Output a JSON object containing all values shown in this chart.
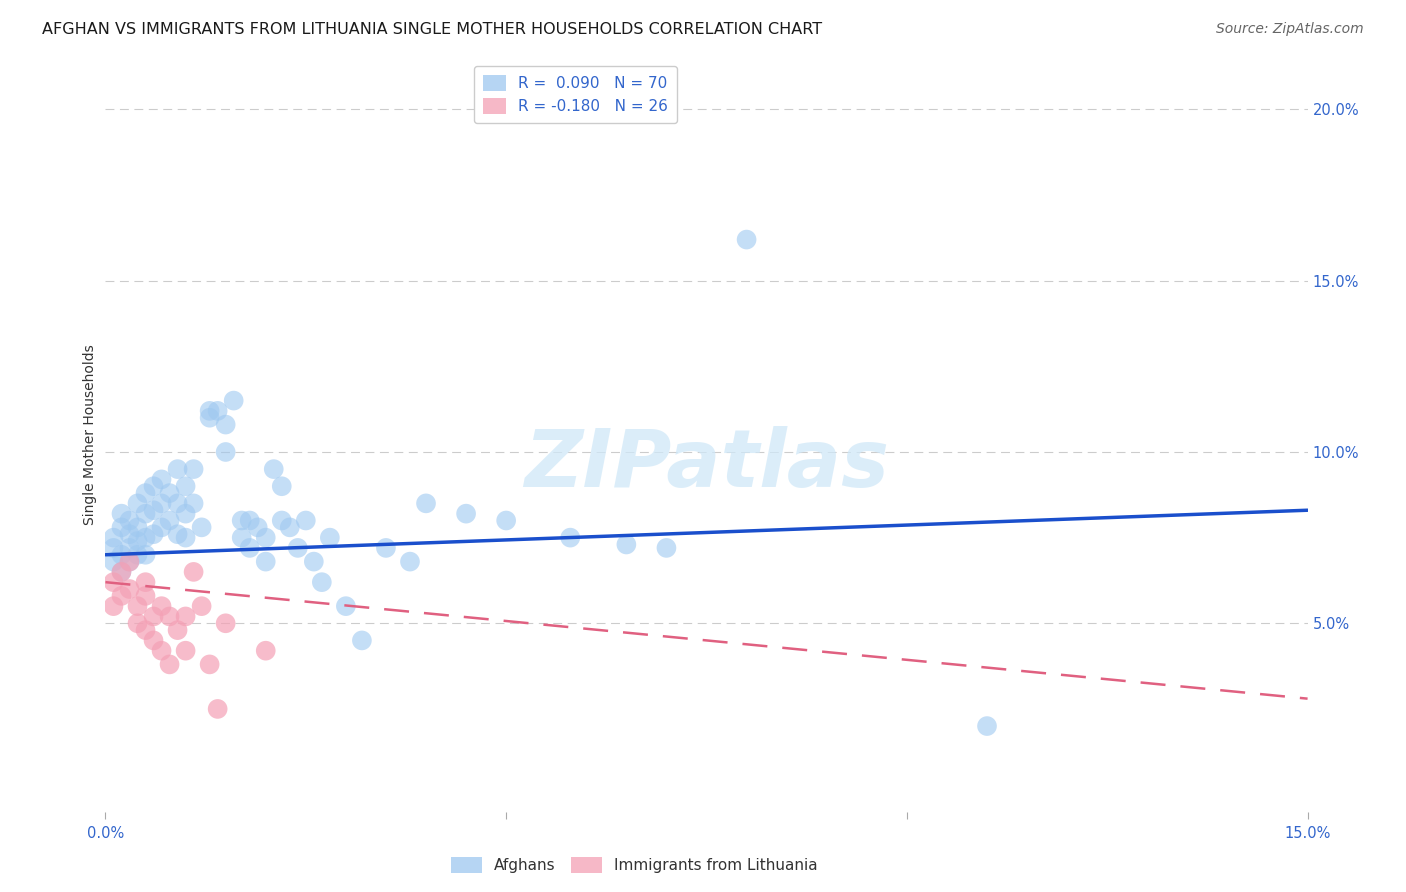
{
  "title": "AFGHAN VS IMMIGRANTS FROM LITHUANIA SINGLE MOTHER HOUSEHOLDS CORRELATION CHART",
  "source": "Source: ZipAtlas.com",
  "ylabel": "Single Mother Households",
  "right_yticks": [
    0.0,
    0.05,
    0.1,
    0.15,
    0.2
  ],
  "right_yticklabels": [
    "",
    "5.0%",
    "10.0%",
    "15.0%",
    "20.0%"
  ],
  "xlim": [
    0.0,
    0.15
  ],
  "ylim": [
    -0.005,
    0.215
  ],
  "legend_entries": [
    {
      "label": "R =  0.090   N = 70",
      "color": "#9ec8f0"
    },
    {
      "label": "R = -0.180   N = 26",
      "color": "#f4a0b5"
    }
  ],
  "blue_color": "#9ec8f0",
  "pink_color": "#f4a0b5",
  "blue_line_color": "#1a4fcc",
  "pink_line_color": "#e06080",
  "watermark": "ZIPatlas",
  "blue_scatter": [
    [
      0.001,
      0.075
    ],
    [
      0.001,
      0.072
    ],
    [
      0.001,
      0.068
    ],
    [
      0.002,
      0.078
    ],
    [
      0.002,
      0.082
    ],
    [
      0.002,
      0.07
    ],
    [
      0.002,
      0.065
    ],
    [
      0.003,
      0.08
    ],
    [
      0.003,
      0.076
    ],
    [
      0.003,
      0.072
    ],
    [
      0.003,
      0.068
    ],
    [
      0.004,
      0.085
    ],
    [
      0.004,
      0.078
    ],
    [
      0.004,
      0.074
    ],
    [
      0.004,
      0.07
    ],
    [
      0.005,
      0.088
    ],
    [
      0.005,
      0.082
    ],
    [
      0.005,
      0.075
    ],
    [
      0.005,
      0.07
    ],
    [
      0.006,
      0.09
    ],
    [
      0.006,
      0.083
    ],
    [
      0.006,
      0.076
    ],
    [
      0.007,
      0.092
    ],
    [
      0.007,
      0.085
    ],
    [
      0.007,
      0.078
    ],
    [
      0.008,
      0.088
    ],
    [
      0.008,
      0.08
    ],
    [
      0.009,
      0.095
    ],
    [
      0.009,
      0.085
    ],
    [
      0.009,
      0.076
    ],
    [
      0.01,
      0.09
    ],
    [
      0.01,
      0.082
    ],
    [
      0.01,
      0.075
    ],
    [
      0.011,
      0.095
    ],
    [
      0.011,
      0.085
    ],
    [
      0.012,
      0.078
    ],
    [
      0.013,
      0.112
    ],
    [
      0.013,
      0.11
    ],
    [
      0.014,
      0.112
    ],
    [
      0.015,
      0.108
    ],
    [
      0.015,
      0.1
    ],
    [
      0.016,
      0.115
    ],
    [
      0.017,
      0.08
    ],
    [
      0.017,
      0.075
    ],
    [
      0.018,
      0.08
    ],
    [
      0.018,
      0.072
    ],
    [
      0.019,
      0.078
    ],
    [
      0.02,
      0.075
    ],
    [
      0.02,
      0.068
    ],
    [
      0.021,
      0.095
    ],
    [
      0.022,
      0.09
    ],
    [
      0.022,
      0.08
    ],
    [
      0.023,
      0.078
    ],
    [
      0.024,
      0.072
    ],
    [
      0.025,
      0.08
    ],
    [
      0.026,
      0.068
    ],
    [
      0.027,
      0.062
    ],
    [
      0.028,
      0.075
    ],
    [
      0.03,
      0.055
    ],
    [
      0.032,
      0.045
    ],
    [
      0.035,
      0.072
    ],
    [
      0.038,
      0.068
    ],
    [
      0.04,
      0.085
    ],
    [
      0.045,
      0.082
    ],
    [
      0.05,
      0.08
    ],
    [
      0.058,
      0.075
    ],
    [
      0.065,
      0.073
    ],
    [
      0.07,
      0.072
    ],
    [
      0.08,
      0.162
    ],
    [
      0.11,
      0.02
    ]
  ],
  "pink_scatter": [
    [
      0.001,
      0.062
    ],
    [
      0.001,
      0.055
    ],
    [
      0.002,
      0.065
    ],
    [
      0.002,
      0.058
    ],
    [
      0.003,
      0.068
    ],
    [
      0.003,
      0.06
    ],
    [
      0.004,
      0.055
    ],
    [
      0.004,
      0.05
    ],
    [
      0.005,
      0.062
    ],
    [
      0.005,
      0.058
    ],
    [
      0.005,
      0.048
    ],
    [
      0.006,
      0.052
    ],
    [
      0.006,
      0.045
    ],
    [
      0.007,
      0.055
    ],
    [
      0.007,
      0.042
    ],
    [
      0.008,
      0.052
    ],
    [
      0.008,
      0.038
    ],
    [
      0.009,
      0.048
    ],
    [
      0.01,
      0.052
    ],
    [
      0.01,
      0.042
    ],
    [
      0.011,
      0.065
    ],
    [
      0.012,
      0.055
    ],
    [
      0.013,
      0.038
    ],
    [
      0.014,
      0.025
    ],
    [
      0.015,
      0.05
    ],
    [
      0.02,
      0.042
    ]
  ],
  "blue_line_x": [
    0.0,
    0.15
  ],
  "blue_line_y": [
    0.07,
    0.083
  ],
  "pink_line_x": [
    0.0,
    0.15
  ],
  "pink_line_y": [
    0.062,
    0.028
  ],
  "background_color": "#ffffff",
  "grid_color": "#cccccc",
  "title_fontsize": 11.5,
  "axis_label_fontsize": 10,
  "tick_fontsize": 10.5,
  "legend_fontsize": 11,
  "source_fontsize": 10
}
